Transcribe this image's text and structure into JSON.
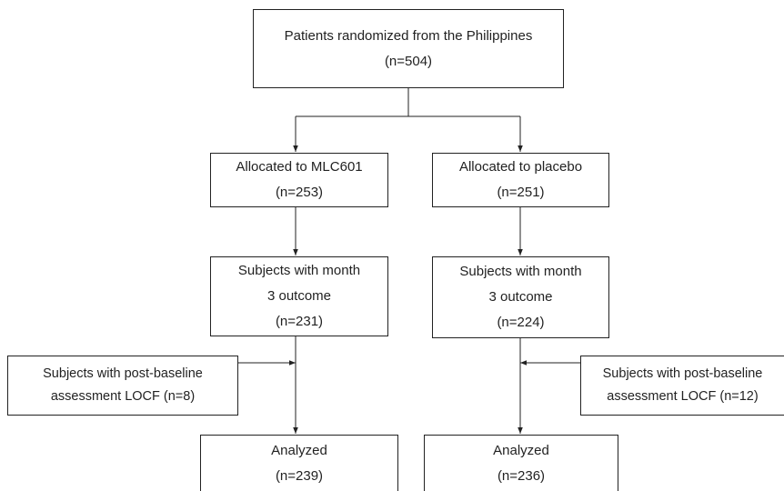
{
  "nodes": [
    {
      "lines": [
        "Patients randomized from the Philippines",
        "(n=504)"
      ]
    },
    {
      "lines": [
        "Allocated to MLC601",
        "(n=253)"
      ]
    },
    {
      "lines": [
        "Allocated to placebo",
        "(n=251)"
      ]
    },
    {
      "lines": [
        "Subjects with month",
        "3 outcome",
        "(n=231)"
      ]
    },
    {
      "lines": [
        "Subjects with month",
        "3 outcome",
        "(n=224)"
      ]
    },
    {
      "lines": [
        "Subjects with post-baseline",
        "assessment LOCF (n=8)"
      ]
    },
    {
      "lines": [
        "Subjects with post-baseline",
        "assessment LOCF (n=12)"
      ]
    },
    {
      "lines": [
        "Analyzed",
        "(n=239)"
      ]
    },
    {
      "lines": [
        "Analyzed",
        "(n=236)"
      ]
    }
  ]
}
